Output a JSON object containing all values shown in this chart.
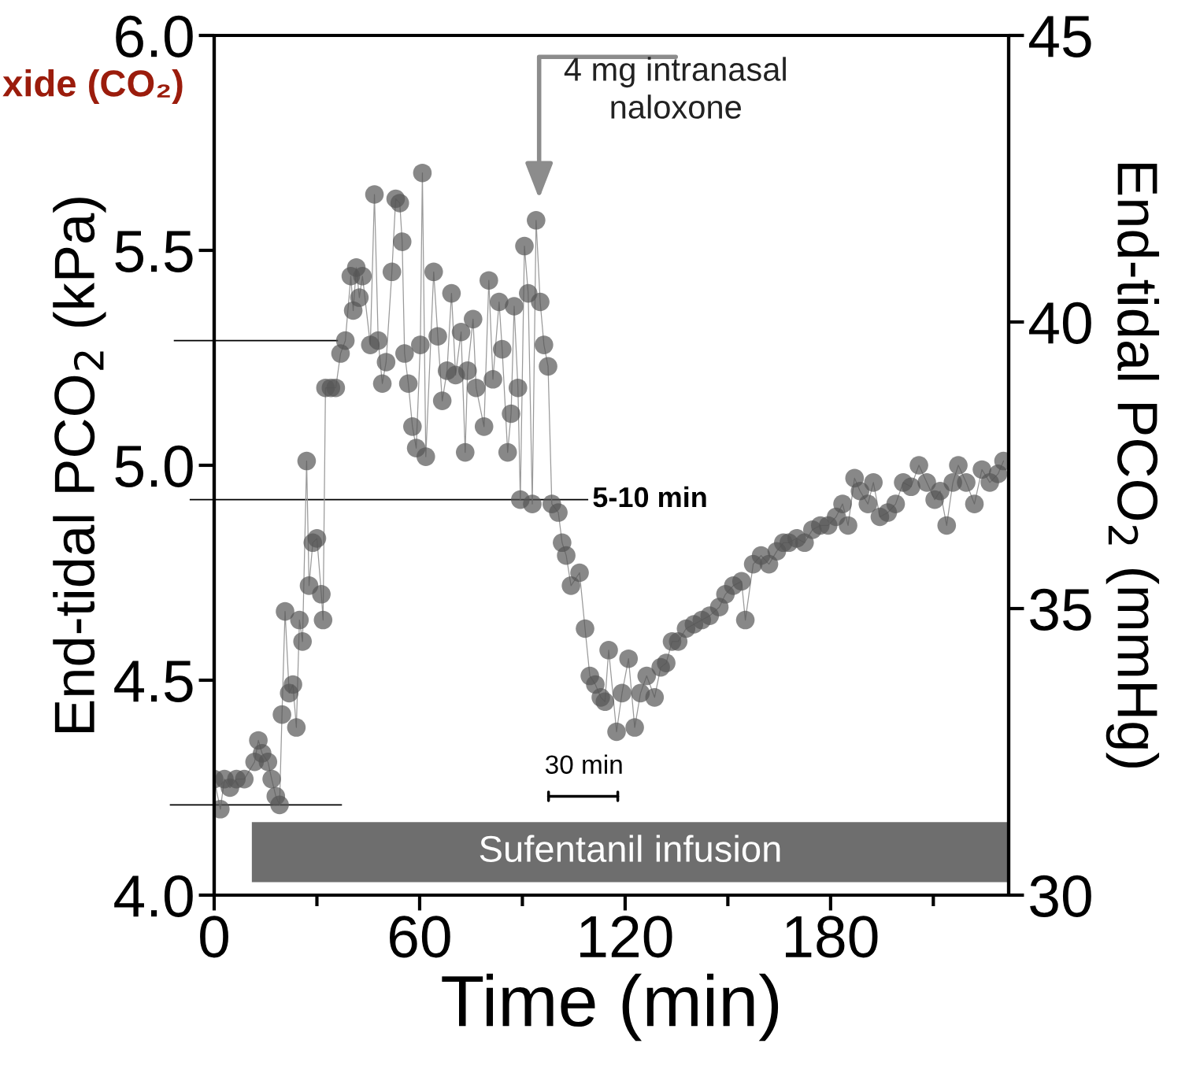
{
  "chart_data": {
    "type": "line",
    "xlabel": "Time (min)",
    "ylabel": "End-tidal PCO$_{2}$ (kPa)",
    "y2label": "End-tidal PCO$_{2}$ (mmHg)",
    "xlim": [
      0,
      232
    ],
    "xticks": [
      0,
      {
        "value": 30,
        "label": null
      },
      60,
      {
        "value": 90,
        "label": null
      },
      120,
      {
        "value": 150,
        "label": null
      },
      180,
      {
        "value": 210,
        "label": null
      }
    ],
    "ylim": [
      4.0,
      6.0
    ],
    "yticks": [
      {
        "value": 4.0,
        "label": "4.0"
      },
      4.5,
      {
        "value": 5.0,
        "label": "5.0"
      },
      5.5,
      {
        "value": 6.0,
        "label": "6.0"
      }
    ],
    "y2lim": [
      30,
      45
    ],
    "y2ticks": [
      30,
      35,
      40,
      45
    ],
    "marker": "circle",
    "line_style": "solid",
    "grid": false,
    "series": [
      {
        "color": "#555555",
        "x": [
          0,
          1.8,
          3,
          4.6,
          6.5,
          8.8,
          11.8,
          12.9,
          14,
          15.7,
          16.8,
          18,
          19.1,
          19.8,
          20.7,
          21.9,
          23,
          24,
          24.9,
          25.8,
          27,
          27.7,
          28.8,
          30,
          31.3,
          31.8,
          32.5,
          34.1,
          35.5,
          36.9,
          38.3,
          39.9,
          40.6,
          41.5,
          42.4,
          43.3,
          45.6,
          46.8,
          47.9,
          49.1,
          50.2,
          51.9,
          53,
          54.2,
          54.9,
          55.6,
          56.7,
          57.9,
          59,
          60.2,
          60.8,
          61.8,
          64.1,
          65.3,
          66.6,
          68,
          69.3,
          70.5,
          72.1,
          73.3,
          74,
          75.6,
          76.5,
          78.8,
          80.2,
          81.4,
          83.2,
          84.1,
          85.7,
          86.7,
          87.6,
          88.7,
          89.4,
          90.6,
          91.7,
          92.9,
          94,
          95.2,
          96.3,
          97.5,
          98.6,
          100.5,
          101.6,
          102.8,
          104.2,
          106.7,
          108.3,
          109.7,
          111.3,
          112.9,
          114.1,
          115.2,
          117.5,
          119.1,
          121,
          122.8,
          124.5,
          126.3,
          128.6,
          130.4,
          132,
          133.7,
          135.5,
          137.8,
          140.1,
          142.4,
          144.7,
          147.5,
          149.3,
          151.6,
          154,
          155.1,
          157.4,
          159.7,
          162,
          164.3,
          166.2,
          167.8,
          170.1,
          172.4,
          174.7,
          177,
          179.3,
          181.6,
          183.5,
          185.1,
          187,
          188.6,
          190.9,
          192.5,
          194.4,
          196.7,
          199,
          201.2,
          203.5,
          205.8,
          208.1,
          210.4,
          212,
          213.9,
          215.7,
          217.3,
          219.6,
          222,
          224.2,
          226.5,
          228.9,
          230.5
        ],
        "values": [
          4.27,
          4.2,
          4.27,
          4.25,
          4.27,
          4.27,
          4.31,
          4.36,
          4.33,
          4.31,
          4.27,
          4.23,
          4.21,
          4.42,
          4.66,
          4.47,
          4.49,
          4.39,
          4.64,
          4.59,
          5.01,
          4.72,
          4.82,
          4.83,
          4.7,
          4.64,
          5.18,
          5.18,
          5.18,
          5.26,
          5.29,
          5.44,
          5.36,
          5.46,
          5.39,
          5.44,
          5.28,
          5.63,
          5.29,
          5.19,
          5.24,
          5.45,
          5.62,
          5.61,
          5.52,
          5.26,
          5.19,
          5.09,
          5.04,
          5.28,
          5.68,
          5.02,
          5.45,
          5.3,
          5.15,
          5.22,
          5.4,
          5.21,
          5.31,
          5.03,
          5.22,
          5.34,
          5.18,
          5.09,
          5.43,
          5.2,
          5.38,
          5.27,
          5.03,
          5.12,
          5.37,
          5.18,
          4.92,
          5.51,
          5.4,
          4.91,
          5.57,
          5.38,
          5.28,
          5.23,
          4.91,
          4.89,
          4.82,
          4.79,
          4.72,
          4.75,
          4.62,
          4.51,
          4.49,
          4.46,
          4.45,
          4.57,
          4.38,
          4.47,
          4.55,
          4.39,
          4.47,
          4.51,
          4.46,
          4.53,
          4.54,
          4.59,
          4.59,
          4.62,
          4.63,
          4.64,
          4.65,
          4.67,
          4.7,
          4.72,
          4.73,
          4.64,
          4.77,
          4.79,
          4.77,
          4.8,
          4.82,
          4.82,
          4.83,
          4.82,
          4.85,
          4.86,
          4.86,
          4.88,
          4.91,
          4.86,
          4.97,
          4.94,
          4.91,
          4.96,
          4.88,
          4.89,
          4.91,
          4.96,
          4.95,
          5.0,
          4.96,
          4.92,
          4.94,
          4.86,
          4.96,
          5.0,
          4.96,
          4.91,
          4.99,
          4.96,
          4.98,
          5.01
        ]
      }
    ],
    "ref_lines": [
      {
        "axis": "y",
        "value": 5.29,
        "color": "#000000"
      },
      {
        "axis": "y",
        "value": 4.92,
        "label": "5-10 min",
        "color": "#000000"
      },
      {
        "axis": "y",
        "value": 4.21,
        "color": "#000000"
      }
    ],
    "bands": [
      {
        "axis": "x",
        "from": 11,
        "to": 232,
        "label": "Sufentanil infusion",
        "color": "#6e6e6e"
      }
    ],
    "annotations": [
      "4 mg intranasal\nnaloxone",
      "30 min",
      "xide (CO₂)"
    ]
  }
}
